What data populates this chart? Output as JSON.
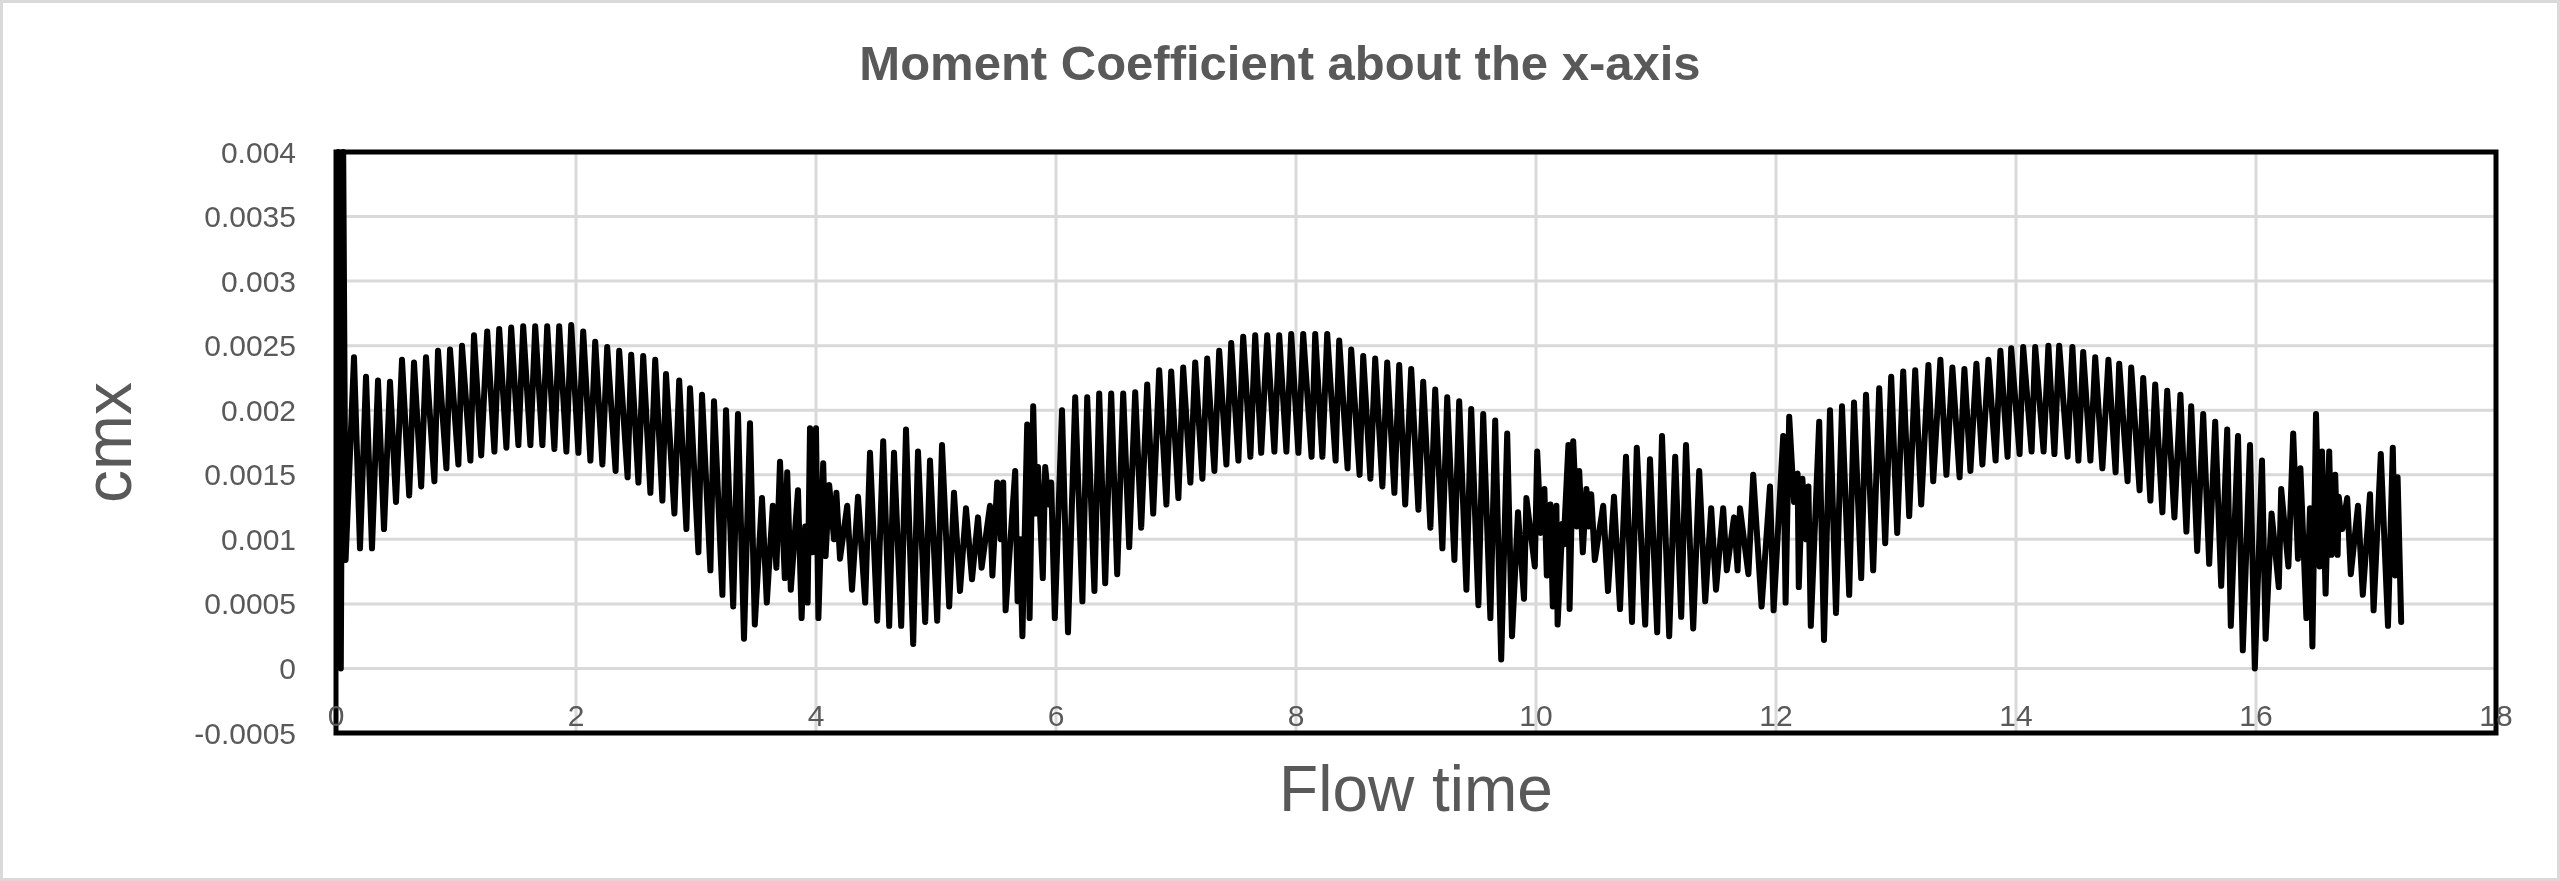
{
  "chart_data": {
    "type": "line",
    "title": "Moment Coefficient about the x-axis",
    "xlabel": "Flow time",
    "ylabel": "cmx",
    "xlim": [
      0,
      18
    ],
    "xticks": [
      0,
      2,
      4,
      6,
      8,
      10,
      12,
      14,
      16,
      18
    ],
    "ylim": [
      -0.0005,
      0.004
    ],
    "yticks": [
      -0.0005,
      0,
      0.0005,
      0.001,
      0.0015,
      0.002,
      0.0025,
      0.003,
      0.0035,
      0.004
    ],
    "grid": true,
    "x": [
      0.02,
      0.04,
      0.06,
      0.08,
      0.15,
      0.2,
      0.25,
      0.3,
      0.35,
      0.4,
      0.45,
      0.5,
      0.55,
      0.61,
      0.65,
      0.71,
      0.75,
      0.82,
      0.85,
      0.92,
      0.95,
      1.02,
      1.05,
      1.12,
      1.15,
      1.21,
      1.26,
      1.32,
      1.36,
      1.42,
      1.46,
      1.52,
      1.56,
      1.62,
      1.66,
      1.72,
      1.76,
      1.82,
      1.86,
      1.92,
      1.96,
      2.02,
      2.06,
      2.12,
      2.16,
      2.22,
      2.26,
      2.33,
      2.36,
      2.43,
      2.46,
      2.52,
      2.56,
      2.62,
      2.66,
      2.72,
      2.75,
      2.82,
      2.86,
      2.92,
      2.95,
      3.02,
      3.05,
      3.12,
      3.15,
      3.22,
      3.25,
      3.31,
      3.35,
      3.4,
      3.45,
      3.49,
      3.55,
      3.59,
      3.64,
      3.67,
      3.7,
      3.74,
      3.76,
      3.79,
      3.85,
      3.88,
      3.91,
      3.93,
      3.95,
      3.97,
      4,
      4.02,
      4.06,
      4.08,
      4.11,
      4.15,
      4.17,
      4.2,
      4.26,
      4.3,
      4.35,
      4.41,
      4.45,
      4.51,
      4.56,
      4.61,
      4.65,
      4.71,
      4.75,
      4.81,
      4.85,
      4.91,
      4.95,
      5.01,
      5.05,
      5.11,
      5.15,
      5.2,
      5.25,
      5.3,
      5.35,
      5.38,
      5.45,
      5.47,
      5.51,
      5.54,
      5.56,
      5.58,
      5.66,
      5.68,
      5.7,
      5.72,
      5.76,
      5.78,
      5.81,
      5.83,
      5.85,
      5.89,
      5.91,
      5.94,
      5.96,
      5.99,
      6.05,
      6.1,
      6.16,
      6.22,
      6.26,
      6.32,
      6.36,
      6.41,
      6.46,
      6.51,
      6.56,
      6.61,
      6.66,
      6.71,
      6.76,
      6.81,
      6.86,
      6.92,
      6.96,
      7.02,
      7.06,
      7.12,
      7.16,
      7.22,
      7.26,
      7.32,
      7.36,
      7.42,
      7.46,
      7.52,
      7.56,
      7.62,
      7.66,
      7.71,
      7.76,
      7.82,
      7.86,
      7.92,
      7.96,
      8.02,
      8.06,
      8.13,
      8.16,
      8.22,
      8.26,
      8.33,
      8.36,
      8.43,
      8.46,
      8.53,
      8.56,
      8.62,
      8.66,
      8.72,
      8.76,
      8.82,
      8.86,
      8.91,
      8.96,
      9.02,
      9.06,
      9.12,
      9.16,
      9.22,
      9.26,
      9.32,
      9.36,
      9.42,
      9.46,
      9.52,
      9.56,
      9.62,
      9.66,
      9.71,
      9.76,
      9.8,
      9.85,
      9.9,
      9.92,
      9.99,
      10.01,
      10.04,
      10.07,
      10.09,
      10.12,
      10.14,
      10.17,
      10.18,
      10.22,
      10.23,
      10.27,
      10.28,
      10.31,
      10.34,
      10.36,
      10.39,
      10.42,
      10.44,
      10.46,
      10.49,
      10.56,
      10.6,
      10.65,
      10.7,
      10.75,
      10.8,
      10.84,
      10.91,
      10.95,
      11.01,
      11.05,
      11.11,
      11.16,
      11.21,
      11.25,
      11.31,
      11.36,
      11.41,
      11.46,
      11.5,
      11.56,
      11.59,
      11.65,
      11.68,
      11.7,
      11.77,
      11.81,
      11.88,
      11.95,
      11.98,
      12.06,
      12.08,
      12.11,
      12.15,
      12.18,
      12.19,
      12.22,
      12.25,
      12.27,
      12.29,
      12.36,
      12.4,
      12.45,
      12.5,
      12.55,
      12.61,
      12.65,
      12.71,
      12.75,
      12.81,
      12.86,
      12.91,
      12.96,
      13.01,
      13.06,
      13.11,
      13.16,
      13.21,
      13.27,
      13.31,
      13.37,
      13.42,
      13.47,
      13.53,
      13.57,
      13.62,
      13.67,
      13.72,
      13.77,
      13.83,
      13.87,
      13.93,
      13.96,
      14.03,
      14.06,
      14.13,
      14.16,
      14.23,
      14.27,
      14.32,
      14.36,
      14.43,
      14.47,
      14.52,
      14.56,
      14.62,
      14.66,
      14.72,
      14.77,
      14.83,
      14.86,
      14.93,
      14.96,
      15.03,
      15.06,
      15.12,
      15.16,
      15.22,
      15.26,
      15.32,
      15.37,
      15.42,
      15.46,
      15.51,
      15.56,
      15.61,
      15.66,
      15.71,
      15.76,
      15.79,
      15.85,
      15.89,
      15.95,
      15.99,
      16.05,
      16.08,
      16.13,
      16.19,
      16.21,
      16.27,
      16.31,
      16.35,
      16.37,
      16.42,
      16.45,
      16.47,
      16.5,
      16.53,
      16.55,
      16.58,
      16.61,
      16.63,
      16.66,
      16.68,
      16.69,
      16.72,
      16.76,
      16.79,
      16.85,
      16.89,
      16.95,
      16.98,
      17.04,
      17.1,
      17.14,
      17.16,
      17.18,
      17.21
    ],
    "series": [
      {
        "color": "#000000",
        "values": [
          0.004,
          0,
          0.004,
          0.00084,
          0.00241,
          0.00093,
          0.00226,
          0.00093,
          0.00223,
          0.00108,
          0.00222,
          0.00129,
          0.00239,
          0.00134,
          0.00237,
          0.00141,
          0.00241,
          0.00145,
          0.00246,
          0.00155,
          0.00247,
          0.00158,
          0.0025,
          0.00161,
          0.00258,
          0.00165,
          0.00261,
          0.00168,
          0.00263,
          0.00171,
          0.00264,
          0.00173,
          0.00265,
          0.00173,
          0.00265,
          0.00173,
          0.00265,
          0.0017,
          0.00265,
          0.00168,
          0.00266,
          0.00167,
          0.00261,
          0.00161,
          0.00253,
          0.00158,
          0.00249,
          0.00153,
          0.00246,
          0.00148,
          0.00243,
          0.00144,
          0.00242,
          0.00136,
          0.00239,
          0.0013,
          0.00228,
          0.0012,
          0.00223,
          0.00108,
          0.00217,
          0.0009,
          0.00212,
          0.00076,
          0.00207,
          0.00057,
          0.002,
          0.00048,
          0.00197,
          0.00023,
          0.0019,
          0.00034,
          0.00132,
          0.00051,
          0.00126,
          0.00078,
          0.0016,
          0.0007,
          0.00152,
          0.00061,
          0.00138,
          0.00039,
          0.0011,
          0.00051,
          0.00186,
          0.0009,
          0.00186,
          0.00039,
          0.00159,
          0.00087,
          0.00142,
          0.001,
          0.00136,
          0.00085,
          0.00126,
          0.00061,
          0.00133,
          0.00051,
          0.00167,
          0.00037,
          0.00176,
          0.00033,
          0.00167,
          0.00033,
          0.00185,
          0.00019,
          0.00168,
          0.00036,
          0.00161,
          0.00037,
          0.00173,
          0.00048,
          0.00136,
          0.0006,
          0.00124,
          0.00069,
          0.00117,
          0.00078,
          0.00126,
          0.00072,
          0.00144,
          0.001,
          0.00144,
          0.00045,
          0.00153,
          0.00052,
          0.001,
          0.00025,
          0.00189,
          0.00039,
          0.00203,
          0.0012,
          0.00156,
          0.0007,
          0.00156,
          0.00127,
          0.00144,
          0.00039,
          0.002,
          0.00028,
          0.0021,
          0.00052,
          0.0021,
          0.0006,
          0.00213,
          0.00066,
          0.00213,
          0.00073,
          0.00213,
          0.00094,
          0.00214,
          0.00109,
          0.0022,
          0.0012,
          0.00231,
          0.00127,
          0.0023,
          0.00132,
          0.00233,
          0.00144,
          0.00237,
          0.00147,
          0.0024,
          0.00153,
          0.00246,
          0.00158,
          0.00252,
          0.00161,
          0.00257,
          0.00164,
          0.00258,
          0.00167,
          0.00258,
          0.00168,
          0.00258,
          0.00168,
          0.00259,
          0.00167,
          0.00259,
          0.00164,
          0.00259,
          0.00164,
          0.00259,
          0.00161,
          0.00254,
          0.00155,
          0.00247,
          0.0015,
          0.00242,
          0.00147,
          0.0024,
          0.00141,
          0.00237,
          0.00136,
          0.00235,
          0.00127,
          0.00232,
          0.00123,
          0.00222,
          0.00109,
          0.00216,
          0.00093,
          0.0021,
          0.00084,
          0.00207,
          0.00061,
          0.00201,
          0.00049,
          0.00197,
          0.00039,
          0.00192,
          7e-05,
          0.00182,
          0.00025,
          0.00121,
          0.00054,
          0.00132,
          0.00079,
          0.00168,
          0.00105,
          0.00139,
          0.00072,
          0.00127,
          0.00048,
          0.00126,
          0.00034,
          0.00112,
          0.00096,
          0.00173,
          0.00046,
          0.00176,
          0.0011,
          0.00153,
          0.0009,
          0.00139,
          0.0011,
          0.00135,
          0.00084,
          0.00126,
          0.0006,
          0.00133,
          0.00046,
          0.00164,
          0.00036,
          0.00171,
          0.00034,
          0.00162,
          0.00028,
          0.0018,
          0.00025,
          0.00164,
          0.0004,
          0.00173,
          0.00031,
          0.00153,
          0.00052,
          0.00124,
          0.00061,
          0.00124,
          0.00076,
          0.00117,
          0.00076,
          0.00124,
          0.00073,
          0.0015,
          0.00048,
          0.00141,
          0.00045,
          0.0018,
          0.00051,
          0.00195,
          0.00129,
          0.00151,
          0.00063,
          0.00147,
          0.001,
          0.00141,
          0.00033,
          0.00191,
          0.00022,
          0.002,
          0.00043,
          0.00203,
          0.00057,
          0.00206,
          0.0007,
          0.00212,
          0.00076,
          0.00217,
          0.00097,
          0.00226,
          0.00105,
          0.0023,
          0.00118,
          0.00231,
          0.00127,
          0.00235,
          0.00145,
          0.00239,
          0.0015,
          0.00233,
          0.00148,
          0.00232,
          0.00153,
          0.00236,
          0.00158,
          0.00239,
          0.00161,
          0.00246,
          0.00164,
          0.00248,
          0.00166,
          0.00249,
          0.00168,
          0.00249,
          0.00168,
          0.0025,
          0.00166,
          0.0025,
          0.00164,
          0.00249,
          0.00161,
          0.00245,
          0.00161,
          0.00241,
          0.00155,
          0.00239,
          0.00152,
          0.00236,
          0.00145,
          0.00233,
          0.00138,
          0.00225,
          0.0013,
          0.0022,
          0.00121,
          0.00215,
          0.00117,
          0.00212,
          0.00106,
          0.00203,
          0.00091,
          0.00197,
          0.00081,
          0.00191,
          0.00064,
          0.00185,
          0.00033,
          0.0018,
          0.00014,
          0.00173,
          0,
          0.00161,
          0.00023,
          0.0012,
          0.00063,
          0.00139,
          0.00079,
          0.00182,
          0.00085,
          0.00155,
          0.00039,
          0.00124,
          0.00017,
          0.00197,
          0.00079,
          0.00168,
          0.00058,
          0.00168,
          0.00088,
          0.0015,
          0.00088,
          0.00133,
          0.00108,
          0.00132,
          0.00073,
          0.00126,
          0.00057,
          0.00135,
          0.00045,
          0.00166,
          0.00033,
          0.00171,
          0.00072,
          0.00148,
          0.00036
        ]
      }
    ]
  }
}
